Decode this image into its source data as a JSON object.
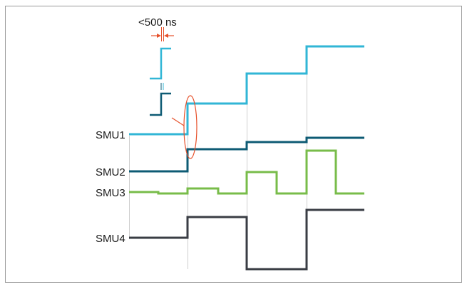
{
  "colors": {
    "border": "#9a9a9a",
    "gridline": "#cfcfcf",
    "smu1": "#31b6d6",
    "smu2": "#0e5b74",
    "smu3": "#78bc4a",
    "smu4": "#3a3d44",
    "annotation": "#e6502a",
    "text": "#1a1a1a"
  },
  "annotation": {
    "timing_label": "<500 ns"
  },
  "signals": [
    {
      "name": "SMU1",
      "color_key": "smu1"
    },
    {
      "name": "SMU2",
      "color_key": "smu2"
    },
    {
      "name": "SMU3",
      "color_key": "smu3"
    },
    {
      "name": "SMU4",
      "color_key": "smu4"
    }
  ]
}
